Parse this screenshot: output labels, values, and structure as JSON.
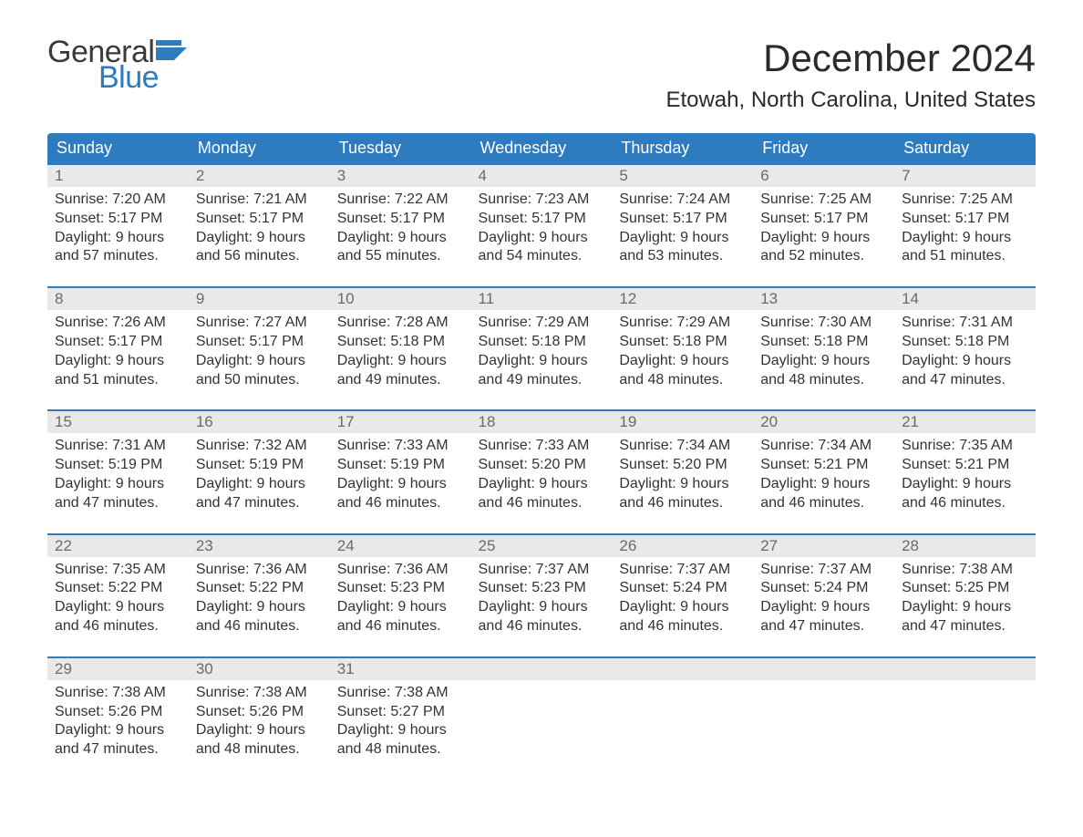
{
  "logo": {
    "word1": "General",
    "word2": "Blue"
  },
  "title": "December 2024",
  "location": "Etowah, North Carolina, United States",
  "colors": {
    "brand_blue": "#2f7bbf",
    "header_bg": "#2f7bbf",
    "header_text": "#ffffff",
    "daynum_bg": "#e9e9e9",
    "daynum_text": "#6a6a6a",
    "body_text": "#333333",
    "week_border": "#2f7bbf",
    "page_bg": "#ffffff"
  },
  "typography": {
    "title_fontsize_pt": 32,
    "location_fontsize_pt": 18,
    "dayheader_fontsize_pt": 14,
    "daynum_fontsize_pt": 13,
    "body_fontsize_pt": 12
  },
  "day_headers": [
    "Sunday",
    "Monday",
    "Tuesday",
    "Wednesday",
    "Thursday",
    "Friday",
    "Saturday"
  ],
  "weeks": [
    [
      {
        "num": "1",
        "sunrise": "7:20 AM",
        "sunset": "5:17 PM",
        "daylight": "9 hours and 57 minutes."
      },
      {
        "num": "2",
        "sunrise": "7:21 AM",
        "sunset": "5:17 PM",
        "daylight": "9 hours and 56 minutes."
      },
      {
        "num": "3",
        "sunrise": "7:22 AM",
        "sunset": "5:17 PM",
        "daylight": "9 hours and 55 minutes."
      },
      {
        "num": "4",
        "sunrise": "7:23 AM",
        "sunset": "5:17 PM",
        "daylight": "9 hours and 54 minutes."
      },
      {
        "num": "5",
        "sunrise": "7:24 AM",
        "sunset": "5:17 PM",
        "daylight": "9 hours and 53 minutes."
      },
      {
        "num": "6",
        "sunrise": "7:25 AM",
        "sunset": "5:17 PM",
        "daylight": "9 hours and 52 minutes."
      },
      {
        "num": "7",
        "sunrise": "7:25 AM",
        "sunset": "5:17 PM",
        "daylight": "9 hours and 51 minutes."
      }
    ],
    [
      {
        "num": "8",
        "sunrise": "7:26 AM",
        "sunset": "5:17 PM",
        "daylight": "9 hours and 51 minutes."
      },
      {
        "num": "9",
        "sunrise": "7:27 AM",
        "sunset": "5:17 PM",
        "daylight": "9 hours and 50 minutes."
      },
      {
        "num": "10",
        "sunrise": "7:28 AM",
        "sunset": "5:18 PM",
        "daylight": "9 hours and 49 minutes."
      },
      {
        "num": "11",
        "sunrise": "7:29 AM",
        "sunset": "5:18 PM",
        "daylight": "9 hours and 49 minutes."
      },
      {
        "num": "12",
        "sunrise": "7:29 AM",
        "sunset": "5:18 PM",
        "daylight": "9 hours and 48 minutes."
      },
      {
        "num": "13",
        "sunrise": "7:30 AM",
        "sunset": "5:18 PM",
        "daylight": "9 hours and 48 minutes."
      },
      {
        "num": "14",
        "sunrise": "7:31 AM",
        "sunset": "5:18 PM",
        "daylight": "9 hours and 47 minutes."
      }
    ],
    [
      {
        "num": "15",
        "sunrise": "7:31 AM",
        "sunset": "5:19 PM",
        "daylight": "9 hours and 47 minutes."
      },
      {
        "num": "16",
        "sunrise": "7:32 AM",
        "sunset": "5:19 PM",
        "daylight": "9 hours and 47 minutes."
      },
      {
        "num": "17",
        "sunrise": "7:33 AM",
        "sunset": "5:19 PM",
        "daylight": "9 hours and 46 minutes."
      },
      {
        "num": "18",
        "sunrise": "7:33 AM",
        "sunset": "5:20 PM",
        "daylight": "9 hours and 46 minutes."
      },
      {
        "num": "19",
        "sunrise": "7:34 AM",
        "sunset": "5:20 PM",
        "daylight": "9 hours and 46 minutes."
      },
      {
        "num": "20",
        "sunrise": "7:34 AM",
        "sunset": "5:21 PM",
        "daylight": "9 hours and 46 minutes."
      },
      {
        "num": "21",
        "sunrise": "7:35 AM",
        "sunset": "5:21 PM",
        "daylight": "9 hours and 46 minutes."
      }
    ],
    [
      {
        "num": "22",
        "sunrise": "7:35 AM",
        "sunset": "5:22 PM",
        "daylight": "9 hours and 46 minutes."
      },
      {
        "num": "23",
        "sunrise": "7:36 AM",
        "sunset": "5:22 PM",
        "daylight": "9 hours and 46 minutes."
      },
      {
        "num": "24",
        "sunrise": "7:36 AM",
        "sunset": "5:23 PM",
        "daylight": "9 hours and 46 minutes."
      },
      {
        "num": "25",
        "sunrise": "7:37 AM",
        "sunset": "5:23 PM",
        "daylight": "9 hours and 46 minutes."
      },
      {
        "num": "26",
        "sunrise": "7:37 AM",
        "sunset": "5:24 PM",
        "daylight": "9 hours and 46 minutes."
      },
      {
        "num": "27",
        "sunrise": "7:37 AM",
        "sunset": "5:24 PM",
        "daylight": "9 hours and 47 minutes."
      },
      {
        "num": "28",
        "sunrise": "7:38 AM",
        "sunset": "5:25 PM",
        "daylight": "9 hours and 47 minutes."
      }
    ],
    [
      {
        "num": "29",
        "sunrise": "7:38 AM",
        "sunset": "5:26 PM",
        "daylight": "9 hours and 47 minutes."
      },
      {
        "num": "30",
        "sunrise": "7:38 AM",
        "sunset": "5:26 PM",
        "daylight": "9 hours and 48 minutes."
      },
      {
        "num": "31",
        "sunrise": "7:38 AM",
        "sunset": "5:27 PM",
        "daylight": "9 hours and 48 minutes."
      },
      null,
      null,
      null,
      null
    ]
  ],
  "labels": {
    "sunrise_prefix": "Sunrise: ",
    "sunset_prefix": "Sunset: ",
    "daylight_prefix": "Daylight: "
  }
}
